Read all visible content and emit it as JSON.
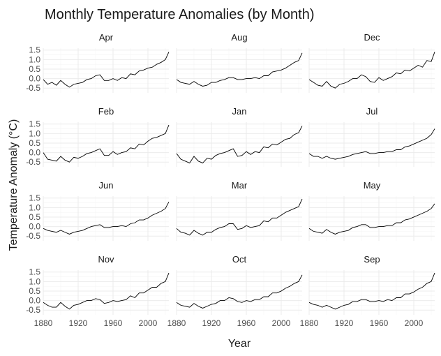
{
  "chart_data": {
    "type": "line",
    "title": "Monthly Temperature Anomalies (by Month)",
    "xlabel": "Year",
    "ylabel": "Temperature Anomaly (°C)",
    "xlim": [
      1880,
      2024
    ],
    "ylim": [
      -0.75,
      1.6
    ],
    "x_ticks": [
      1880,
      1920,
      1960,
      2000
    ],
    "y_ticks": [
      -0.5,
      0.0,
      0.5,
      1.0,
      1.5
    ],
    "x_tick_labels": [
      "1880",
      "1920",
      "1960",
      "2000"
    ],
    "y_tick_labels": [
      "-0.5",
      "0.0",
      "0.5",
      "1.0",
      "1.5"
    ],
    "grid": true,
    "facet_layout": {
      "rows": 4,
      "cols": 3
    },
    "x": [
      1880,
      1885,
      1890,
      1895,
      1900,
      1905,
      1910,
      1915,
      1920,
      1925,
      1930,
      1935,
      1940,
      1945,
      1950,
      1955,
      1960,
      1965,
      1970,
      1975,
      1980,
      1985,
      1990,
      1995,
      2000,
      2005,
      2010,
      2015,
      2020,
      2024
    ],
    "series": [
      {
        "name": "Apr",
        "values": [
          -0.05,
          -0.3,
          -0.2,
          -0.35,
          -0.1,
          -0.3,
          -0.45,
          -0.3,
          -0.25,
          -0.2,
          -0.05,
          0.0,
          0.15,
          0.2,
          -0.1,
          -0.1,
          0.0,
          -0.1,
          0.05,
          0.0,
          0.25,
          0.2,
          0.4,
          0.45,
          0.55,
          0.6,
          0.75,
          0.85,
          1.0,
          1.4
        ]
      },
      {
        "name": "Aug",
        "values": [
          -0.05,
          -0.2,
          -0.25,
          -0.3,
          -0.15,
          -0.3,
          -0.4,
          -0.35,
          -0.2,
          -0.2,
          -0.1,
          -0.05,
          0.05,
          0.05,
          -0.05,
          -0.05,
          0.0,
          0.0,
          0.05,
          0.0,
          0.15,
          0.15,
          0.35,
          0.4,
          0.45,
          0.55,
          0.7,
          0.85,
          0.95,
          1.35
        ]
      },
      {
        "name": "Dec",
        "values": [
          -0.05,
          -0.2,
          -0.35,
          -0.4,
          -0.15,
          -0.4,
          -0.5,
          -0.3,
          -0.25,
          -0.15,
          0.0,
          0.0,
          0.2,
          0.1,
          -0.15,
          -0.2,
          0.05,
          -0.1,
          0.0,
          0.1,
          0.3,
          0.25,
          0.45,
          0.4,
          0.55,
          0.7,
          0.6,
          0.95,
          0.9,
          1.4
        ]
      },
      {
        "name": "Feb",
        "values": [
          0.0,
          -0.35,
          -0.4,
          -0.45,
          -0.2,
          -0.4,
          -0.5,
          -0.25,
          -0.3,
          -0.2,
          -0.05,
          0.0,
          0.1,
          0.2,
          -0.15,
          -0.15,
          0.05,
          -0.1,
          0.0,
          0.05,
          0.25,
          0.2,
          0.45,
          0.4,
          0.6,
          0.75,
          0.8,
          0.9,
          1.0,
          1.45
        ]
      },
      {
        "name": "Jan",
        "values": [
          -0.05,
          -0.35,
          -0.45,
          -0.55,
          -0.2,
          -0.45,
          -0.55,
          -0.3,
          -0.35,
          -0.15,
          -0.05,
          0.0,
          0.1,
          0.2,
          -0.2,
          -0.15,
          0.05,
          -0.1,
          0.05,
          0.0,
          0.3,
          0.25,
          0.45,
          0.4,
          0.55,
          0.7,
          0.75,
          0.95,
          1.05,
          1.4
        ]
      },
      {
        "name": "Jul",
        "values": [
          -0.05,
          -0.2,
          -0.2,
          -0.3,
          -0.2,
          -0.3,
          -0.35,
          -0.3,
          -0.25,
          -0.2,
          -0.1,
          -0.05,
          0.0,
          0.05,
          -0.05,
          -0.05,
          0.0,
          0.0,
          0.05,
          0.05,
          0.15,
          0.15,
          0.3,
          0.35,
          0.45,
          0.55,
          0.65,
          0.75,
          0.95,
          1.25
        ]
      },
      {
        "name": "Jun",
        "values": [
          -0.1,
          -0.2,
          -0.25,
          -0.3,
          -0.2,
          -0.3,
          -0.4,
          -0.3,
          -0.25,
          -0.2,
          -0.1,
          0.0,
          0.05,
          0.1,
          -0.05,
          -0.05,
          0.0,
          0.0,
          0.05,
          0.0,
          0.15,
          0.2,
          0.35,
          0.35,
          0.45,
          0.6,
          0.7,
          0.8,
          0.95,
          1.3
        ]
      },
      {
        "name": "Mar",
        "values": [
          -0.1,
          -0.3,
          -0.35,
          -0.45,
          -0.2,
          -0.35,
          -0.45,
          -0.3,
          -0.3,
          -0.15,
          -0.05,
          0.0,
          0.15,
          0.15,
          -0.15,
          -0.1,
          0.05,
          -0.05,
          0.0,
          0.05,
          0.3,
          0.25,
          0.45,
          0.45,
          0.6,
          0.75,
          0.85,
          0.95,
          1.05,
          1.45
        ]
      },
      {
        "name": "May",
        "values": [
          -0.1,
          -0.25,
          -0.3,
          -0.35,
          -0.15,
          -0.3,
          -0.4,
          -0.3,
          -0.25,
          -0.2,
          -0.05,
          0.0,
          0.1,
          0.1,
          -0.05,
          -0.05,
          0.0,
          0.0,
          0.05,
          0.05,
          0.2,
          0.2,
          0.35,
          0.4,
          0.5,
          0.6,
          0.7,
          0.8,
          0.95,
          1.2
        ]
      },
      {
        "name": "Nov",
        "values": [
          -0.1,
          -0.25,
          -0.35,
          -0.35,
          -0.1,
          -0.3,
          -0.45,
          -0.25,
          -0.2,
          -0.1,
          0.0,
          0.0,
          0.1,
          0.05,
          -0.15,
          -0.1,
          0.0,
          -0.05,
          0.0,
          0.05,
          0.25,
          0.15,
          0.4,
          0.4,
          0.55,
          0.7,
          0.7,
          0.9,
          1.0,
          1.45
        ]
      },
      {
        "name": "Oct",
        "values": [
          -0.1,
          -0.25,
          -0.3,
          -0.35,
          -0.15,
          -0.3,
          -0.4,
          -0.3,
          -0.2,
          -0.15,
          0.0,
          0.0,
          0.15,
          0.1,
          -0.05,
          -0.1,
          0.0,
          -0.05,
          0.05,
          0.05,
          0.2,
          0.2,
          0.4,
          0.4,
          0.5,
          0.65,
          0.75,
          0.9,
          1.0,
          1.35
        ]
      },
      {
        "name": "Sep",
        "values": [
          -0.1,
          -0.2,
          -0.25,
          -0.35,
          -0.25,
          -0.35,
          -0.45,
          -0.35,
          -0.25,
          -0.2,
          -0.05,
          -0.05,
          0.05,
          0.05,
          -0.05,
          -0.05,
          0.0,
          -0.05,
          0.05,
          0.0,
          0.15,
          0.15,
          0.35,
          0.35,
          0.45,
          0.6,
          0.7,
          0.9,
          1.0,
          1.45
        ]
      }
    ]
  }
}
